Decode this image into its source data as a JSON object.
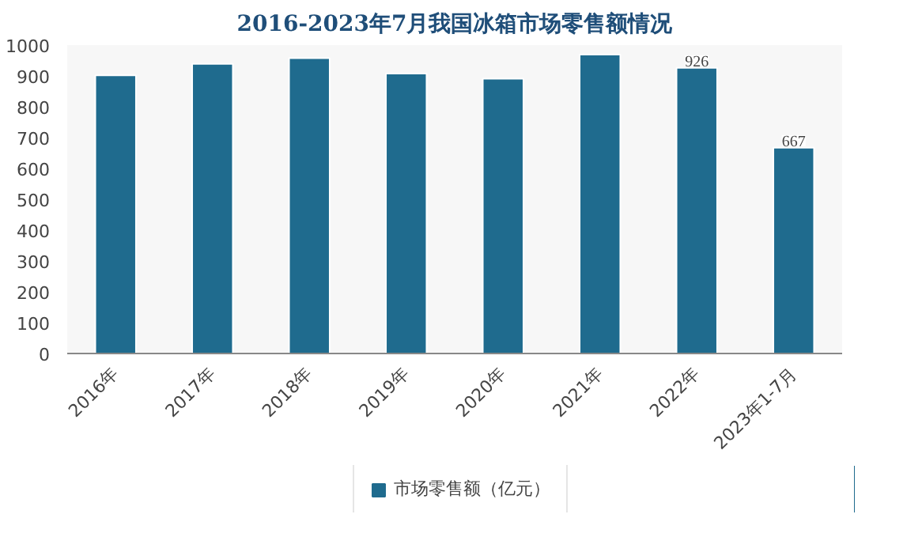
{
  "chart_data": {
    "type": "bar",
    "title": "2016-2023年7月我国冰箱市场零售额情况",
    "categories": [
      "2016年",
      "2017年",
      "2018年",
      "2019年",
      "2020年",
      "2021年",
      "2022年",
      "2023年1-7月"
    ],
    "series": [
      {
        "name": "市场零售额（亿元）",
        "color": "#1f6b8e",
        "values": [
          902,
          939,
          958,
          908,
          891,
          969,
          926,
          667
        ],
        "value_labels": [
          null,
          null,
          null,
          null,
          null,
          null,
          "926",
          "667"
        ]
      }
    ],
    "ylim": [
      0,
      1000
    ],
    "yticks": [
      0,
      100,
      200,
      300,
      400,
      500,
      600,
      700,
      800,
      900,
      1000
    ],
    "grid": false,
    "legend": "bottom"
  }
}
